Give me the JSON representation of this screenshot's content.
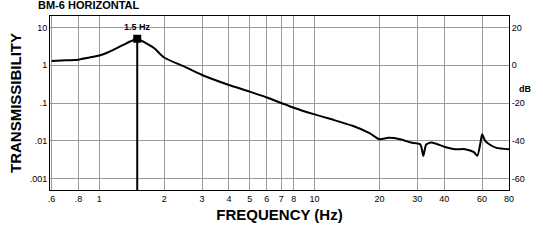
{
  "chart_data": {
    "type": "line",
    "title": "BM-6 HORIZONTAL",
    "x_label": "FREQUENCY (Hz)",
    "y_label": "TRANSMISSIBILITY",
    "y2_label": "dB",
    "log": true,
    "grid": true,
    "color": "#000000",
    "x": [
      0.6,
      0.7,
      0.8,
      0.9,
      1,
      1.1,
      1.2,
      1.3,
      1.4,
      1.5,
      1.6,
      1.8,
      2,
      2.5,
      3,
      4,
      5,
      6,
      7,
      8,
      10,
      12,
      15,
      18,
      20,
      22,
      25,
      28,
      31,
      32,
      33,
      35,
      40,
      45,
      50,
      55,
      57,
      59,
      60,
      62,
      65,
      70,
      80
    ],
    "values": [
      1.3,
      1.35,
      1.4,
      1.6,
      1.8,
      2.2,
      2.8,
      3.5,
      4.3,
      5,
      4.2,
      2.8,
      1.6,
      0.9,
      0.55,
      0.3,
      0.2,
      0.14,
      0.1,
      0.075,
      0.05,
      0.037,
      0.025,
      0.016,
      0.011,
      0.012,
      0.011,
      0.009,
      0.008,
      0.004,
      0.008,
      0.009,
      0.007,
      0.006,
      0.006,
      0.005,
      0.004,
      0.009,
      0.015,
      0.01,
      0.008,
      0.0065,
      0.006
    ],
    "xlim": [
      0.59,
      80
    ],
    "xticks": [
      {
        "value": 0.6,
        "label": ".6"
      },
      {
        "value": 0.8,
        "label": ".8"
      },
      1,
      2,
      3,
      4,
      5,
      6,
      7,
      8,
      10,
      20,
      30,
      40,
      60,
      80
    ],
    "ylim": [
      0.0005,
      20
    ],
    "yticks": [
      {
        "value": 0.001,
        "label": ".001"
      },
      {
        "value": 0.01,
        "label": ".01"
      },
      {
        "value": 0.1,
        "label": ".1"
      },
      1,
      10
    ],
    "y2lim": [
      -66.02,
      26.02
    ],
    "y2ticks": [
      -60,
      -40,
      -20,
      0,
      20
    ],
    "annotations": [
      {
        "text": "1.5 Hz",
        "x": 1.5,
        "y": 5,
        "marker": "square"
      }
    ]
  }
}
